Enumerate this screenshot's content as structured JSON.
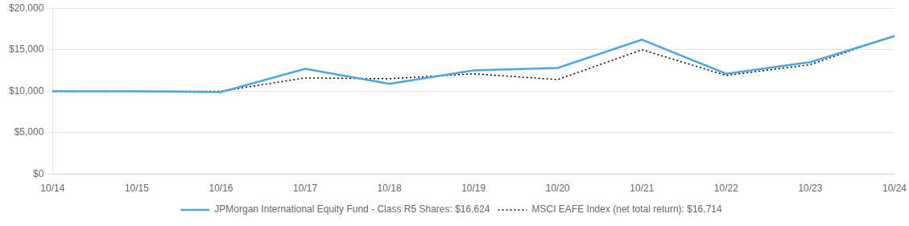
{
  "chart_data": {
    "type": "line",
    "categories": [
      "10/14",
      "10/15",
      "10/16",
      "10/17",
      "10/18",
      "10/19",
      "10/20",
      "10/21",
      "10/22",
      "10/23",
      "10/24"
    ],
    "series": [
      {
        "name": "JPMorgan International Equity Fund - Class R5 Shares: $16,624",
        "color": "#4DA6E0",
        "line_style": "solid",
        "values": [
          10000,
          10000,
          9900,
          12700,
          10900,
          12500,
          12800,
          16200,
          12100,
          13500,
          16624
        ]
      },
      {
        "name": "MSCI EAFE Index (net total return): $16,714",
        "color": "#000000",
        "line_style": "dotted",
        "values": [
          10000,
          10000,
          10000,
          11600,
          11500,
          12100,
          11400,
          15000,
          11900,
          13200,
          16714
        ]
      }
    ],
    "ylim": [
      0,
      20000
    ],
    "yticks": [
      {
        "value": 0,
        "label": "$0"
      },
      {
        "value": 5000,
        "label": "$5,000"
      },
      {
        "value": 10000,
        "label": "$10,000"
      },
      {
        "value": 15000,
        "label": "$15,000"
      },
      {
        "value": 20000,
        "label": "$20,000"
      }
    ],
    "grid": "y",
    "legend": "bottom"
  }
}
